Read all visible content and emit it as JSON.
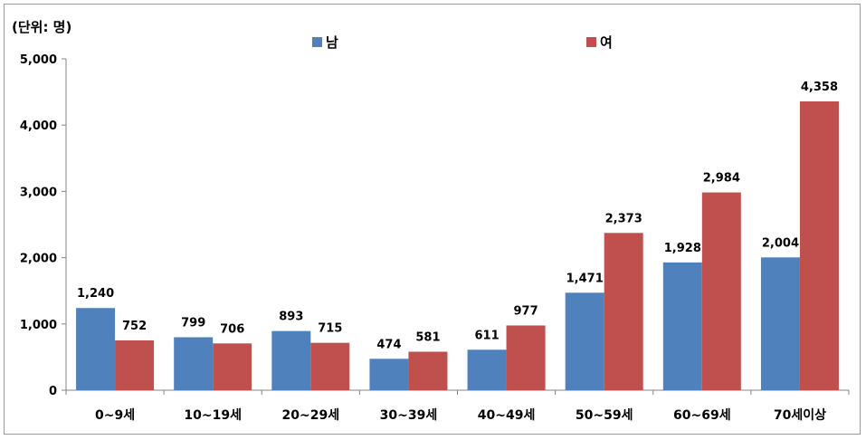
{
  "chart_data": {
    "type": "bar",
    "unit_label": "(단위: 명)",
    "categories": [
      "0~9세",
      "10~19세",
      "20~29세",
      "30~39세",
      "40~49세",
      "50~59세",
      "60~69세",
      "70세이상"
    ],
    "series": [
      {
        "name": "남",
        "color": "#4f81bd",
        "values": [
          1240,
          799,
          893,
          474,
          611,
          1471,
          1928,
          2004
        ],
        "labels": [
          "1,240",
          "799",
          "893",
          "474",
          "611",
          "1,471",
          "1,928",
          "2,004"
        ]
      },
      {
        "name": "여",
        "color": "#c0504d",
        "values": [
          752,
          706,
          715,
          581,
          977,
          2373,
          2984,
          4358
        ],
        "labels": [
          "752",
          "706",
          "715",
          "581",
          "977",
          "2,373",
          "2,984",
          "4,358"
        ]
      }
    ],
    "yticks": [
      0,
      1000,
      2000,
      3000,
      4000,
      5000
    ],
    "ytick_labels": [
      "0",
      "1,000",
      "2,000",
      "3,000",
      "4,000",
      "5,000"
    ],
    "ylim": [
      0,
      5000
    ],
    "legend_position": "top"
  }
}
